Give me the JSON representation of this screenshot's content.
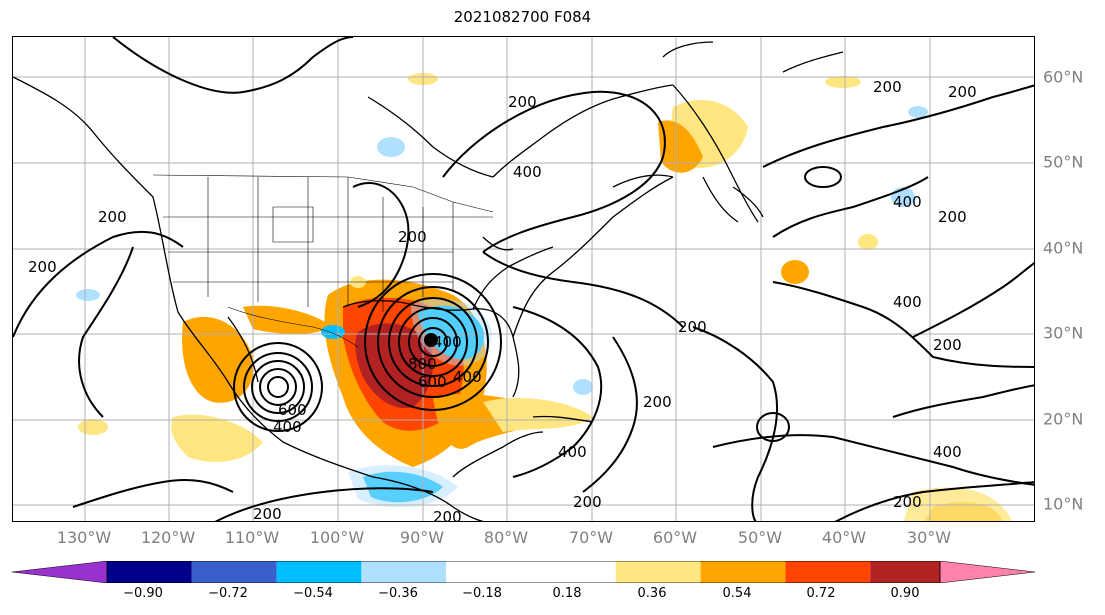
{
  "title": "2021082700 F084",
  "lon_labels": [
    "130°W",
    "120°W",
    "110°W",
    "100°W",
    "90°W",
    "80°W",
    "70°W",
    "60°W",
    "50°W",
    "40°W",
    "30°W"
  ],
  "lat_labels": [
    "60°N",
    "50°N",
    "40°N",
    "30°N",
    "20°N",
    "10°N"
  ],
  "colorbar": {
    "ticks": [
      "−0.90",
      "−0.72",
      "−0.54",
      "−0.36",
      "−0.18",
      "0.18",
      "0.36",
      "0.54",
      "0.72",
      "0.90"
    ],
    "colors": [
      "#9932cc",
      "#00008b",
      "#3a5fcd",
      "#00bfff",
      "#b0e0ff",
      "#ffffff",
      "#ffe680",
      "#ffa500",
      "#ff4500",
      "#b22222",
      "#ff82ab"
    ]
  },
  "contour_labels": [
    "200",
    "200",
    "200",
    "200",
    "200",
    "200",
    "200",
    "200",
    "200",
    "200",
    "200",
    "200",
    "200",
    "200",
    "400",
    "400",
    "400",
    "400",
    "400",
    "400",
    "400",
    "400",
    "600",
    "600",
    "800"
  ]
}
